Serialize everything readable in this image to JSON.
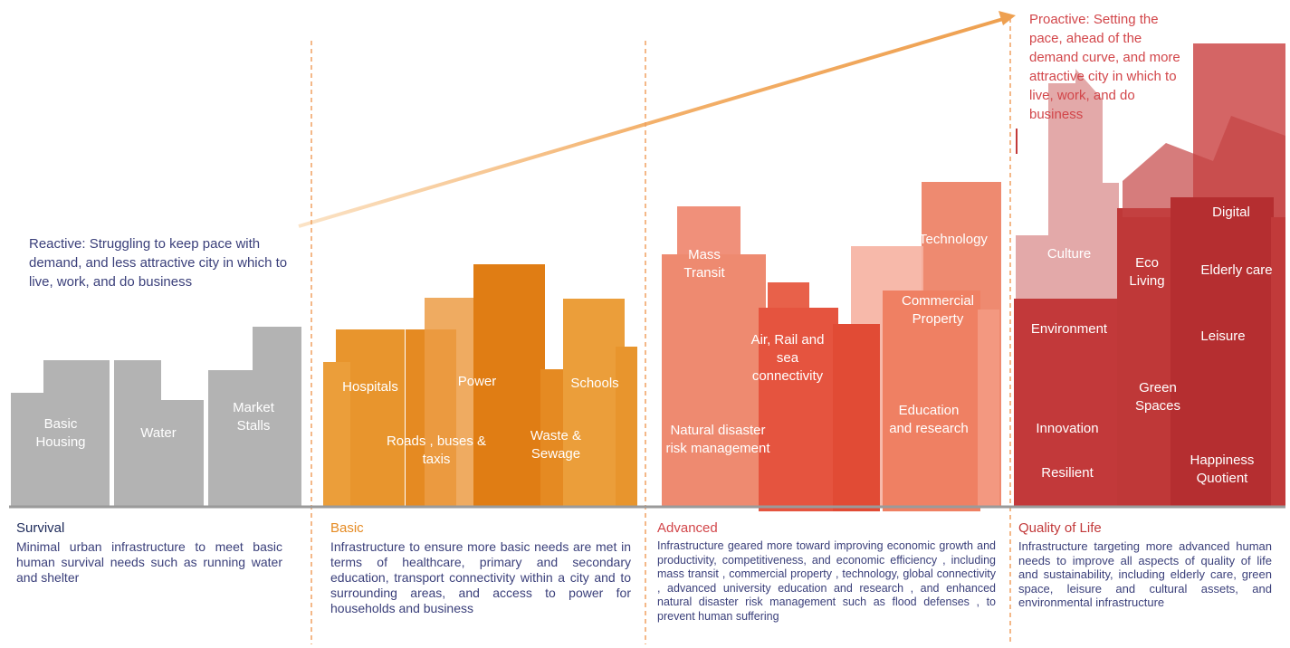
{
  "colors": {
    "survival": "#b3b3b3",
    "basic": "#e58a22",
    "advanced": "#e86a4d",
    "quality": "#c2393a",
    "arrow": "#eea050",
    "divider": "#f0a060",
    "ground": "#9a9a9a",
    "text_blue": "#3a3f7a",
    "proactive_red": "#d2464a"
  },
  "annotations": {
    "reactive": "Reactive: Struggling to keep pace with demand, and less attractive city in which to live, work, and do business",
    "proactive_bold": "Proactive:",
    "proactive_rest": " Setting the pace, ahead of the demand curve, and more attractive city in which to live, work, and do business"
  },
  "building_labels": {
    "basic_housing": "Basic Housing",
    "water": "Water",
    "market_stalls": "Market Stalls",
    "hospitals": "Hospitals",
    "power": "Power",
    "schools": "Schools",
    "roads": "Roads , buses & taxis",
    "waste": "Waste & Sewage",
    "mass_transit": "Mass Transit",
    "technology": "Technology",
    "commercial": "Commercial Property",
    "air_rail": "Air, Rail and sea connectivity",
    "natural_disaster": "Natural disaster risk management",
    "education": "Education and research",
    "culture": "Culture",
    "eco_living": "Eco Living",
    "digital": "Digital",
    "elderly": "Elderly care",
    "environment": "Environment",
    "leisure": "Leisure",
    "green_spaces": "Green Spaces",
    "innovation": "Innovation",
    "resilient": "Resilient",
    "happiness": "Happiness Quotient"
  },
  "stages": [
    {
      "title": "Survival",
      "desc": "Minimal urban infrastructure to meet basic human survival needs such as running water and shelter"
    },
    {
      "title": "Basic",
      "desc": "Infrastructure to ensure more basic needs are met in terms of healthcare, primary and secondary education, transport connectivity within a city and to surrounding areas, and access to power for households and business"
    },
    {
      "title": "Advanced",
      "desc": "Infrastructure geared more toward improving economic growth and productivity, competitiveness, and economic efficiency , including mass transit , commercial property , technology, global connectivity , advanced university education and research , and enhanced natural disaster risk management such as flood defenses , to prevent human suffering"
    },
    {
      "title": "Quality of Life",
      "desc": "Infrastructure targeting more advanced human needs to improve all aspects of quality of life and sustainability, including elderly care, green space, leisure and cultural assets, and environmental infrastructure"
    }
  ]
}
